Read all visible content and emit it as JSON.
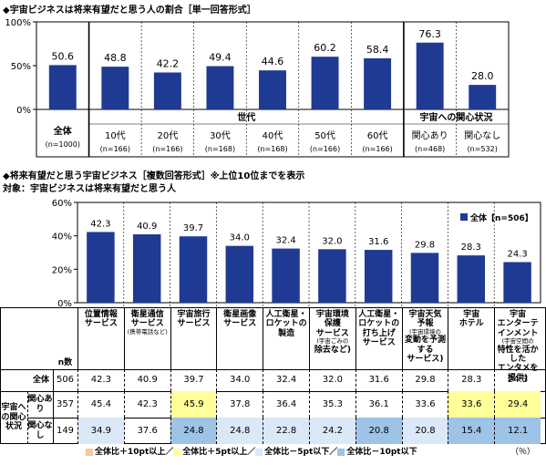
{
  "section1": {
    "title": "◆宇宙ビジネスは将来有望だと思う人の割合［単一回答形式］"
  },
  "section2": {
    "title": "◆将来有望だと思う宇宙ビジネス［複数回答形式］※上位10位までを表示",
    "subtitle": "対象：宇宙ビジネスは将来有望だと思う人"
  },
  "colors": {
    "bar": "#1f3a93",
    "highlight_plus10": "#f7c99b",
    "highlight_plus5": "#ffff99",
    "highlight_minus5": "#dbe8f7",
    "highlight_minus10": "#9dc3e6"
  },
  "chart_data": [
    {
      "type": "bar",
      "categories": [
        "全体",
        "10代",
        "20代",
        "30代",
        "40代",
        "50代",
        "60代",
        "関心あり",
        "関心なし"
      ],
      "n_labels": [
        "(n=1000)",
        "(n=166)",
        "(n=166)",
        "(n=168)",
        "(n=168)",
        "(n=166)",
        "(n=166)",
        "(n=468)",
        "(n=532)"
      ],
      "values": [
        50.6,
        48.8,
        42.2,
        49.4,
        44.6,
        60.2,
        58.4,
        76.3,
        28.0
      ],
      "groups": [
        {
          "label": "世代",
          "members": [
            "10代",
            "20代",
            "30代",
            "40代",
            "50代",
            "60代"
          ]
        },
        {
          "label": "宇宙への関心状況",
          "members": [
            "関心あり",
            "関心なし"
          ]
        }
      ],
      "yticks": [
        "0%",
        "50%",
        "100%"
      ],
      "ylim": [
        0,
        100
      ],
      "grid": false
    },
    {
      "type": "bar",
      "categories": [
        [
          "位置情報",
          "サービス"
        ],
        [
          "衛星通信",
          "サービス",
          "(携帯電話など)"
        ],
        [
          "宇宙旅行",
          "サービス"
        ],
        [
          "衛星画像",
          "サービス"
        ],
        [
          "人工衛星・",
          "ロケットの",
          "製造"
        ],
        [
          "宇宙環境",
          "保護",
          "サービス",
          "(宇宙ごみの",
          "除去など)"
        ],
        [
          "人工衛星・",
          "ロケットの",
          "打ち上げ",
          "サービス"
        ],
        [
          "宇宙天気",
          "予報",
          "(宇宙環境の",
          "変動を予測する",
          "サービス)"
        ],
        [
          "宇宙",
          "ホテル"
        ],
        [
          "宇宙",
          "エンターテ",
          "インメント",
          "(宇宙空間の",
          "特性を活かした",
          "エンタメを提供)"
        ]
      ],
      "series": [
        {
          "name": "全体【n=506】",
          "values": [
            42.3,
            40.9,
            39.7,
            34.0,
            32.4,
            32.0,
            31.6,
            29.8,
            28.3,
            24.3
          ]
        }
      ],
      "yticks": [
        "0%",
        "20%",
        "40%",
        "60%"
      ],
      "ylim": [
        0,
        60
      ],
      "legend": "top-right",
      "table": {
        "n_header": "n数",
        "side_labels": {
          "interest": "宇宙への関心状況",
          "yes": "関心あり",
          "no": "関心なし"
        },
        "rows": [
          {
            "label": "全体",
            "n": "506",
            "values": [
              "42.3",
              "40.9",
              "39.7",
              "34.0",
              "32.4",
              "32.0",
              "31.6",
              "29.8",
              "28.3",
              "24.3"
            ],
            "highlight": [
              "",
              "",
              "",
              "",
              "",
              "",
              "",
              "",
              "",
              ""
            ]
          },
          {
            "label": "関心あり",
            "n": "357",
            "values": [
              "45.4",
              "42.3",
              "45.9",
              "37.8",
              "36.4",
              "35.3",
              "36.1",
              "33.6",
              "33.6",
              "29.4"
            ],
            "highlight": [
              "",
              "",
              "plus5",
              "",
              "",
              "",
              "",
              "",
              "plus5",
              "plus5"
            ]
          },
          {
            "label": "関心なし",
            "n": "149",
            "values": [
              "34.9",
              "37.6",
              "24.8",
              "24.8",
              "22.8",
              "24.2",
              "20.8",
              "20.8",
              "15.4",
              "12.1"
            ],
            "highlight": [
              "minus5",
              "",
              "minus10",
              "minus5",
              "minus5",
              "minus5",
              "minus10",
              "minus5",
              "minus10",
              "minus10"
            ]
          }
        ]
      }
    }
  ],
  "legend_bottom": {
    "items": [
      "全体比＋10pt以上／",
      "全体比＋5pt以上／",
      "全体比－5pt以下／",
      "全体比－10pt以下"
    ],
    "unit": "（％）"
  }
}
